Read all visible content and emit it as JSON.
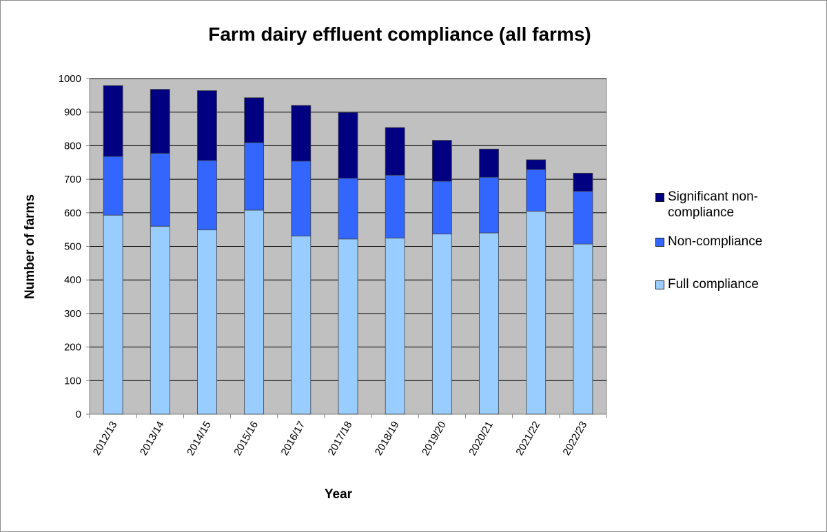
{
  "chart_data": {
    "type": "bar",
    "stacked": true,
    "title": "Farm dairy effluent compliance (all farms)",
    "xlabel": "Year",
    "ylabel": "Number of farms",
    "ylim": [
      0,
      1000
    ],
    "yticks": [
      0,
      100,
      200,
      300,
      400,
      500,
      600,
      700,
      800,
      900,
      1000
    ],
    "grid": true,
    "legend_position": "right",
    "categories": [
      "2012/13",
      "2013/14",
      "2014/15",
      "2015/16",
      "2016/17",
      "2017/18",
      "2018/19",
      "2019/20",
      "2020/21",
      "2021/22",
      "2022/23"
    ],
    "series": [
      {
        "name": "Full compliance",
        "color": "#99ccff",
        "values": [
          593,
          560,
          549,
          608,
          531,
          522,
          525,
          537,
          540,
          605,
          507
        ]
      },
      {
        "name": "Non-compliance",
        "color": "#3366ff",
        "values": [
          175,
          217,
          207,
          201,
          223,
          181,
          187,
          157,
          166,
          124,
          157
        ]
      },
      {
        "name": "Significant non-compliance",
        "color": "#000080",
        "values": [
          211,
          191,
          208,
          134,
          166,
          196,
          142,
          122,
          84,
          29,
          54
        ]
      }
    ],
    "plot_background": "#c0c0c0",
    "legend": [
      {
        "lines": [
          "Significant non-",
          "compliance"
        ],
        "color": "#000080"
      },
      {
        "lines": [
          "Non-compliance"
        ],
        "color": "#3366ff"
      },
      {
        "lines": [
          "Full compliance"
        ],
        "color": "#99ccff"
      }
    ]
  }
}
